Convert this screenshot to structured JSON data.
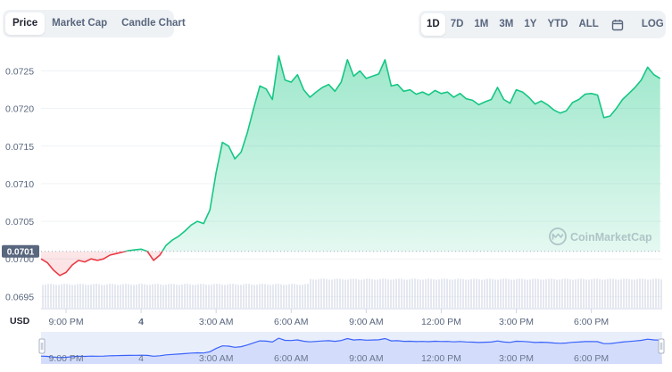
{
  "chart_tabs": [
    {
      "label": "Price",
      "active": true
    },
    {
      "label": "Market Cap",
      "active": false
    },
    {
      "label": "Candle Chart",
      "active": false
    }
  ],
  "range_tabs": [
    {
      "label": "1D",
      "active": true
    },
    {
      "label": "7D",
      "active": false
    },
    {
      "label": "1M",
      "active": false
    },
    {
      "label": "3M",
      "active": false
    },
    {
      "label": "1Y",
      "active": false
    },
    {
      "label": "YTD",
      "active": false
    },
    {
      "label": "ALL",
      "active": false
    }
  ],
  "calendar_icon": "calendar-icon",
  "log_label": "LOG",
  "watermark": "CoinMarketCap",
  "currency_label": "USD",
  "current_price_label": "0.0701",
  "colors": {
    "up_line": "#16c784",
    "down_line": "#ea3943",
    "navigator_line": "#3861fb",
    "navigator_bg": "#e9eefb",
    "grid": "#eff2f5",
    "axis_text": "#58667e",
    "volume": "#cfd6e4"
  },
  "chart_data": {
    "type": "area",
    "title": "",
    "xlabel": "",
    "ylabel": "",
    "ylim": [
      0.06935,
      0.07285
    ],
    "yticks": [
      0.0695,
      0.07,
      0.0705,
      0.071,
      0.0715,
      0.072,
      0.0725
    ],
    "ytick_labels": [
      "0.0695",
      "0.0700",
      "0.0705",
      "0.0710",
      "0.0715",
      "0.0720",
      "0.0725"
    ],
    "xlim": [
      -60,
      1430
    ],
    "xtick_labels": [
      "9:00 PM",
      "4",
      "3:00 AM",
      "6:00 AM",
      "9:00 AM",
      "12:00 PM",
      "3:00 PM",
      "6:00 PM"
    ],
    "xtick_minutes": [
      0,
      180,
      360,
      540,
      720,
      900,
      1080,
      1260
    ],
    "baseline_price": 0.0701,
    "x_minutes": [
      -60,
      -45,
      -30,
      -15,
      0,
      15,
      30,
      45,
      60,
      75,
      90,
      105,
      120,
      135,
      150,
      165,
      180,
      195,
      210,
      225,
      240,
      255,
      270,
      285,
      300,
      315,
      330,
      345,
      360,
      375,
      390,
      405,
      420,
      435,
      450,
      465,
      480,
      495,
      510,
      525,
      540,
      555,
      570,
      585,
      600,
      615,
      630,
      645,
      660,
      675,
      690,
      705,
      720,
      735,
      750,
      765,
      780,
      795,
      810,
      825,
      840,
      855,
      870,
      885,
      900,
      915,
      930,
      945,
      960,
      975,
      990,
      1005,
      1020,
      1035,
      1050,
      1065,
      1080,
      1095,
      1110,
      1125,
      1140,
      1155,
      1170,
      1185,
      1200,
      1215,
      1230,
      1245,
      1260,
      1275,
      1290,
      1305,
      1320,
      1335,
      1350,
      1365,
      1380,
      1395,
      1410,
      1425
    ],
    "price": [
      0.07,
      0.06995,
      0.06985,
      0.06978,
      0.06982,
      0.06992,
      0.06998,
      0.06996,
      0.07,
      0.06998,
      0.07,
      0.07005,
      0.07007,
      0.07009,
      0.07011,
      0.07012,
      0.07013,
      0.0701,
      0.06998,
      0.07005,
      0.07018,
      0.07025,
      0.0703,
      0.07037,
      0.07045,
      0.0705,
      0.07047,
      0.07065,
      0.07115,
      0.07155,
      0.0715,
      0.07133,
      0.07142,
      0.07168,
      0.072,
      0.0723,
      0.07226,
      0.07212,
      0.0727,
      0.07238,
      0.07235,
      0.07245,
      0.07225,
      0.07215,
      0.07222,
      0.07228,
      0.07232,
      0.07223,
      0.07235,
      0.07265,
      0.07243,
      0.0725,
      0.0724,
      0.07243,
      0.07246,
      0.07265,
      0.0723,
      0.07232,
      0.07223,
      0.07225,
      0.07219,
      0.07222,
      0.07218,
      0.07224,
      0.0722,
      0.07222,
      0.07215,
      0.0722,
      0.07213,
      0.07211,
      0.07205,
      0.07209,
      0.07212,
      0.07228,
      0.07212,
      0.07207,
      0.07225,
      0.07222,
      0.07215,
      0.07206,
      0.0721,
      0.07205,
      0.07198,
      0.07194,
      0.07197,
      0.07208,
      0.07212,
      0.07219,
      0.0722,
      0.07218,
      0.07188,
      0.0719,
      0.072,
      0.07212,
      0.0722,
      0.07228,
      0.07238,
      0.07255,
      0.07245,
      0.0724
    ],
    "volume_level": 0.65
  }
}
